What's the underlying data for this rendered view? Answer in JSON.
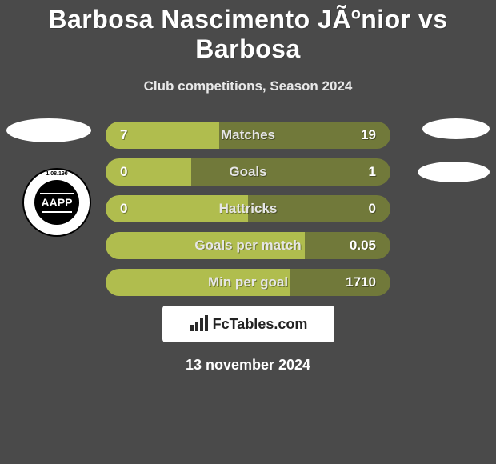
{
  "title": "Barbosa Nascimento JÃºnior vs Barbosa",
  "subtitle": "Club competitions, Season 2024",
  "colors": {
    "bg": "#4a4a4a",
    "pill_light": "#b0bd4e",
    "pill_dark": "#71793a",
    "text_white": "#ffffff",
    "text_muted": "#e6e6e6",
    "box_white": "#ffffff",
    "brand_text": "#222222"
  },
  "badge": {
    "text": "AAPP",
    "subtext": "1.08.190"
  },
  "rows": [
    {
      "label": "Matches",
      "left": "7",
      "right": "19",
      "light_pct": 40,
      "dark_pct": 60
    },
    {
      "label": "Goals",
      "left": "0",
      "right": "1",
      "light_pct": 30,
      "dark_pct": 70
    },
    {
      "label": "Hattricks",
      "left": "0",
      "right": "0",
      "light_pct": 50,
      "dark_pct": 50
    },
    {
      "label": "Goals per match",
      "left": "",
      "right": "0.05",
      "light_pct": 70,
      "dark_pct": 30
    },
    {
      "label": "Min per goal",
      "left": "",
      "right": "1710",
      "light_pct": 65,
      "dark_pct": 35
    }
  ],
  "brand": "FcTables.com",
  "date": "13 november 2024"
}
